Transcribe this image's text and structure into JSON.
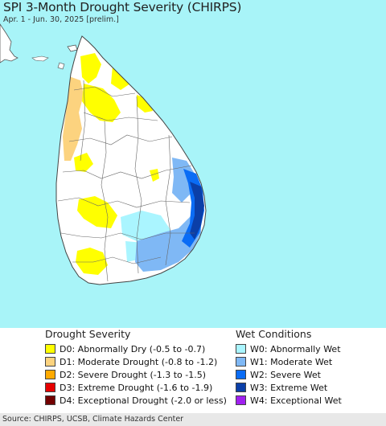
{
  "header": {
    "title": "SPI 3-Month Drought Severity (CHIRPS)",
    "subtitle": "Apr. 1 - Jun. 30, 2025 [prelim.]"
  },
  "legend": {
    "drought": {
      "heading": "Drought Severity",
      "items": [
        {
          "label": "D0: Abnormally Dry (-0.5 to -0.7)",
          "color": "#ffff00"
        },
        {
          "label": "D1: Moderate Drought (-0.8 to -1.2)",
          "color": "#fcd37f"
        },
        {
          "label": "D2: Severe Drought (-1.3 to -1.5)",
          "color": "#ffaa00"
        },
        {
          "label": "D3: Extreme Drought (-1.6 to -1.9)",
          "color": "#e60000"
        },
        {
          "label": "D4: Exceptional Drought (-2.0 or less)",
          "color": "#730000"
        }
      ]
    },
    "wet": {
      "heading": "Wet Conditions",
      "items": [
        {
          "label": "W0: Abnormally Wet",
          "color": "#aaf5ff"
        },
        {
          "label": "W1: Moderate Wet",
          "color": "#7fb8f5"
        },
        {
          "label": "W2: Severe Wet",
          "color": "#0a6cf5"
        },
        {
          "label": "W3: Extreme Wet",
          "color": "#0b3fa8"
        },
        {
          "label": "W4: Exceptional Wet",
          "color": "#a020f0"
        }
      ]
    }
  },
  "footer": {
    "source": "Source: CHIRPS, UCSB, Climate Hazards Center"
  },
  "colors": {
    "ocean": "#a8f4f8",
    "land": "#ffffff",
    "border": "#555555"
  }
}
